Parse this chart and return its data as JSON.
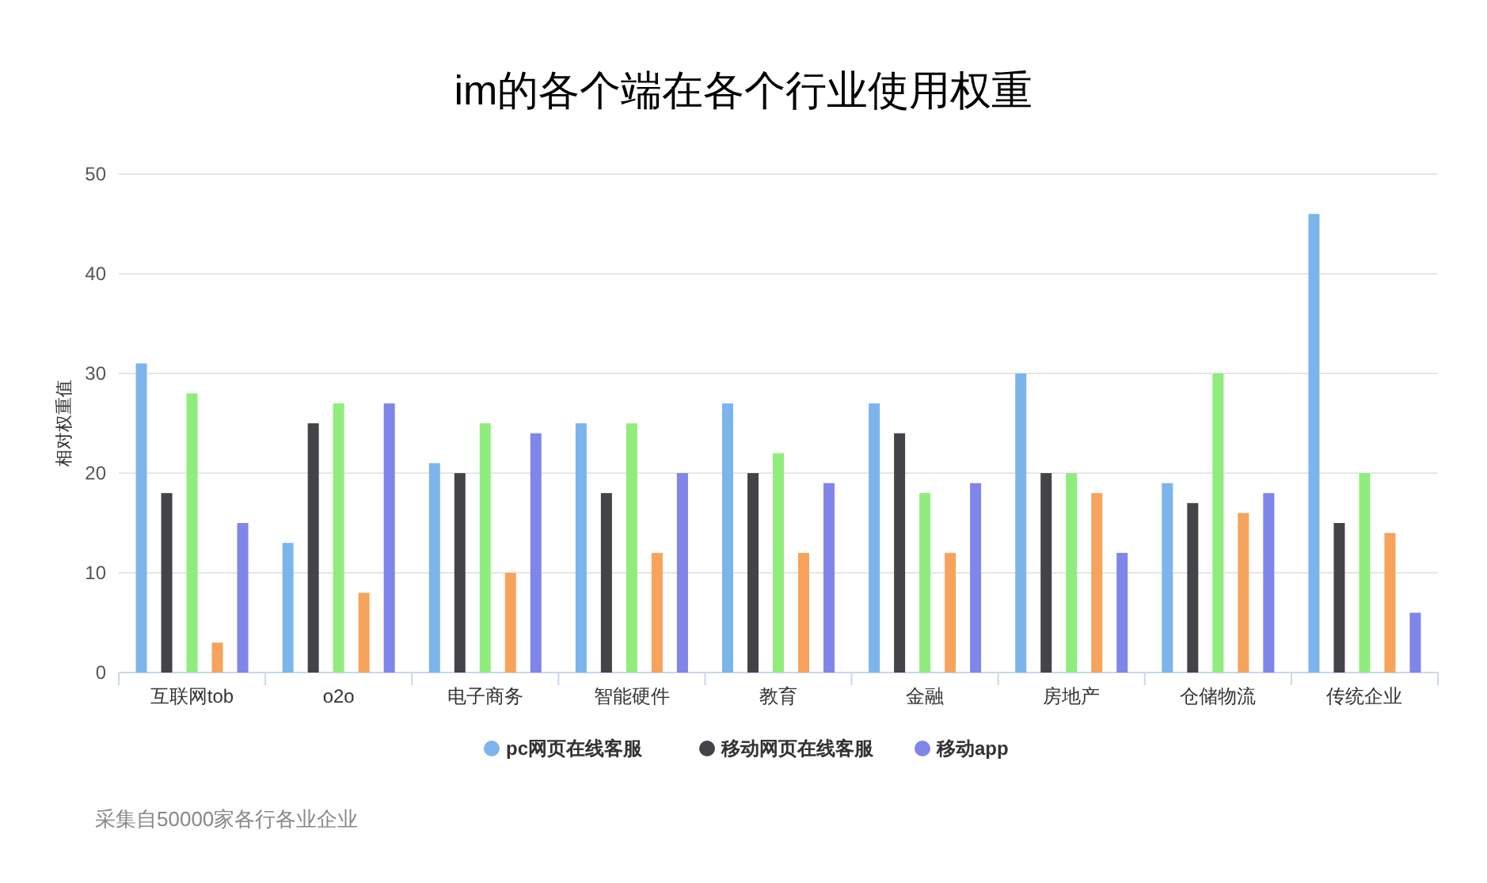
{
  "chart_data": {
    "type": "bar",
    "title": "im的各个端在各个行业使用权重",
    "ylabel": "相对权重值",
    "categories": [
      "互联网tob",
      "o2o",
      "电子商务",
      "智能硬件",
      "教育",
      "金融",
      "房地产",
      "仓储物流",
      "传统企业"
    ],
    "series": [
      {
        "name": "pc网页在线客服",
        "color": "#7cb5ec",
        "values": [
          31,
          13,
          21,
          25,
          27,
          27,
          30,
          19,
          46
        ]
      },
      {
        "name": "移动网页在线客服",
        "color": "#434348",
        "values": [
          18,
          25,
          20,
          18,
          20,
          24,
          20,
          17,
          15
        ]
      },
      {
        "color": "#90ed7d",
        "values": [
          28,
          27,
          25,
          25,
          22,
          18,
          20,
          30,
          20
        ]
      },
      {
        "color": "#f7a35c",
        "values": [
          3,
          8,
          10,
          12,
          12,
          12,
          18,
          16,
          14
        ]
      },
      {
        "name": "移动app",
        "color": "#8085e9",
        "values": [
          15,
          27,
          24,
          20,
          19,
          19,
          12,
          18,
          6
        ]
      }
    ],
    "ylim": [
      0,
      50
    ],
    "yticks": [
      0,
      10,
      20,
      30,
      40,
      50
    ],
    "grid": "y",
    "legend": "bottom",
    "annotations": [
      "采集自50000家各行各业企业"
    ]
  }
}
